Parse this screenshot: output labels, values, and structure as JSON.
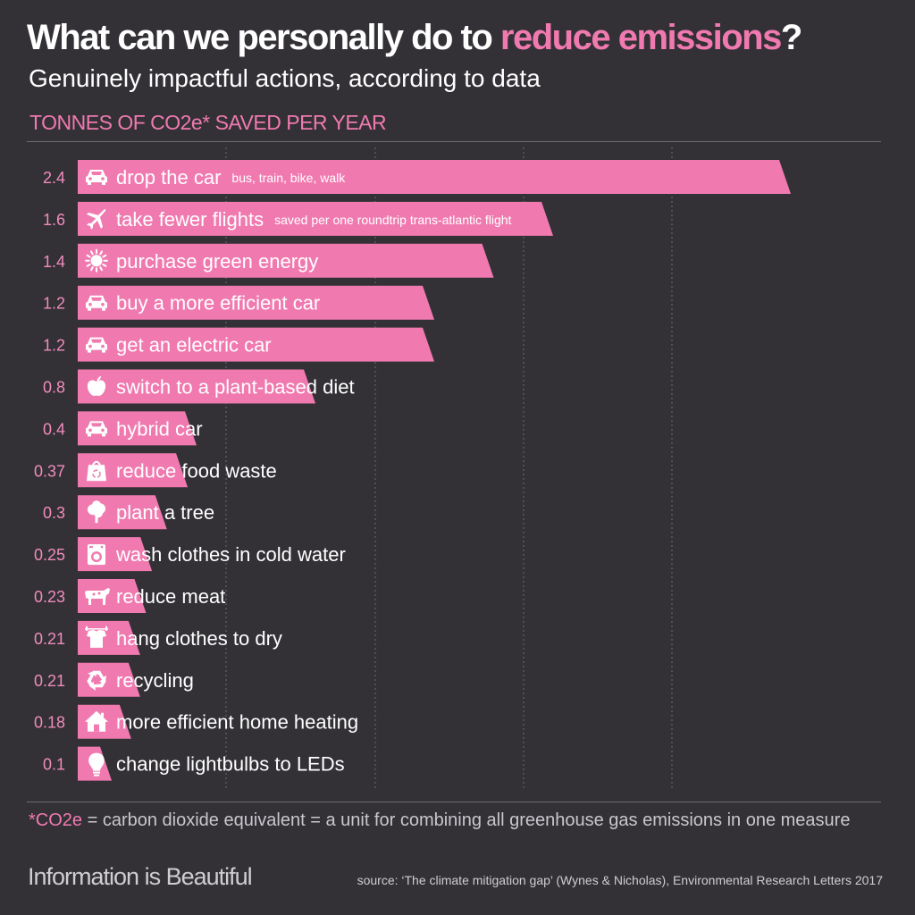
{
  "header": {
    "title_part1": "What can we personally do to ",
    "title_accent": "reduce emissions",
    "title_part2": "?",
    "subtitle": "Genuinely impactful actions, according to data",
    "axis_label": "TONNES OF CO2e* SAVED PER YEAR"
  },
  "colors": {
    "background": "#333136",
    "bar": "#f07ab0",
    "accent": "#f07ab0",
    "text": "#ffffff",
    "grid": "#6e6c72"
  },
  "chart_data": {
    "type": "bar",
    "orientation": "horizontal",
    "xlim": [
      0,
      2.5
    ],
    "grid": true,
    "ylabel": "TONNES OF CO2e* SAVED PER YEAR",
    "rows": [
      {
        "value": 2.4,
        "value_label": "2.4",
        "label": "drop the car",
        "note": "bus, train, bike, walk",
        "icon": "car-icon"
      },
      {
        "value": 1.6,
        "value_label": "1.6",
        "label": "take fewer flights",
        "note": "saved per one roundtrip  trans-atlantic flight",
        "icon": "plane-icon"
      },
      {
        "value": 1.4,
        "value_label": "1.4",
        "label": "purchase green energy",
        "note": "",
        "icon": "sun-icon"
      },
      {
        "value": 1.2,
        "value_label": "1.2",
        "label": "buy a more efficient car",
        "note": "",
        "icon": "car-icon"
      },
      {
        "value": 1.2,
        "value_label": "1.2",
        "label": "get an electric car",
        "note": "",
        "icon": "car-icon"
      },
      {
        "value": 0.8,
        "value_label": "0.8",
        "label": "switch to a plant-based diet",
        "note": "",
        "icon": "apple-icon"
      },
      {
        "value": 0.4,
        "value_label": "0.4",
        "label": "hybrid car",
        "note": "",
        "icon": "car-icon"
      },
      {
        "value": 0.37,
        "value_label": "0.37",
        "label": "reduce food waste",
        "note": "",
        "icon": "recycle-bag-icon"
      },
      {
        "value": 0.3,
        "value_label": "0.3",
        "label": "plant a tree",
        "note": "",
        "icon": "tree-icon"
      },
      {
        "value": 0.25,
        "value_label": "0.25",
        "label": "wash clothes in cold water",
        "note": "",
        "icon": "washing-machine-icon"
      },
      {
        "value": 0.23,
        "value_label": "0.23",
        "label": "reduce meat",
        "note": "",
        "icon": "cow-icon"
      },
      {
        "value": 0.21,
        "value_label": "0.21",
        "label": "hang clothes to dry",
        "note": "",
        "icon": "clothesline-icon"
      },
      {
        "value": 0.21,
        "value_label": "0.21",
        "label": "recycling",
        "note": "",
        "icon": "recycle-icon"
      },
      {
        "value": 0.18,
        "value_label": "0.18",
        "label": "more efficient home heating",
        "note": "",
        "icon": "house-icon"
      },
      {
        "value": 0.1,
        "value_label": "0.1",
        "label": "change lightbulbs to LEDs",
        "note": "",
        "icon": "lightbulb-icon"
      }
    ]
  },
  "footer": {
    "footnote_accent": "*CO2e",
    "footnote_rest": " = carbon dioxide equivalent = a unit for combining all greenhouse gas emissions in one measure",
    "brand": "Information is Beautiful",
    "source": "source: ‘The climate mitigation gap’ (Wynes & Nicholas), Environmental Research Letters 2017"
  }
}
